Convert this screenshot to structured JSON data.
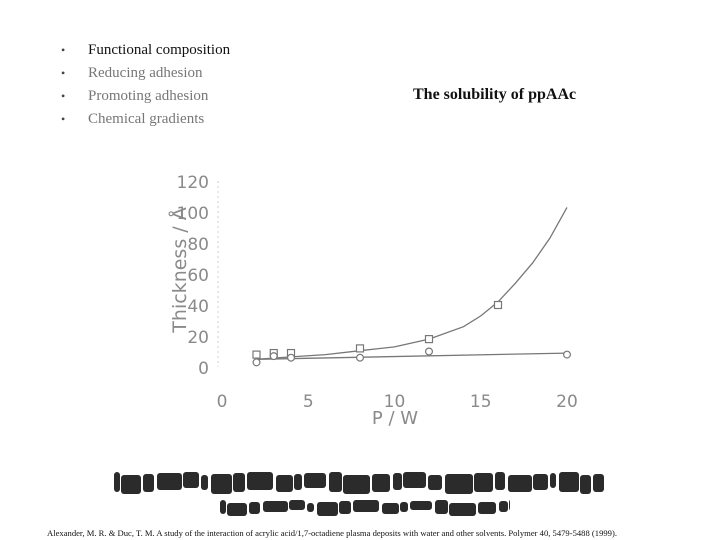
{
  "slide": {
    "bullets": [
      {
        "text": "Functional composition",
        "emphasis": "primary"
      },
      {
        "text": "Reducing adhesion",
        "emphasis": "secondary"
      },
      {
        "text": "Promoting adhesion",
        "emphasis": "secondary"
      },
      {
        "text": "Chemical gradients",
        "emphasis": "secondary"
      }
    ],
    "title": "The solubility of ppAAc",
    "citation": "Alexander, M. R. & Duc, T. M. A study of the interaction of acrylic acid/1,7-octadiene plasma deposits with water and other solvents. Polymer 40, 5479-5488 (1999).",
    "banner_color": "#2b2b2b"
  },
  "chart_data": {
    "type": "scatter",
    "xlabel": "P / W",
    "ylabel": "Thickness / Å",
    "xlim": [
      0,
      20
    ],
    "ylim": [
      0,
      120
    ],
    "x_ticks": [
      "0",
      "5",
      "10",
      "15",
      "20"
    ],
    "y_ticks": [
      "0",
      "20",
      "40",
      "60",
      "80",
      "100",
      "120"
    ],
    "grid": false,
    "series": [
      {
        "marker": "square",
        "color": "#777777",
        "points": [
          [
            2,
            8
          ],
          [
            3,
            9
          ],
          [
            4,
            9
          ],
          [
            8,
            12
          ],
          [
            12,
            18
          ],
          [
            16,
            40
          ]
        ],
        "fit": "exponential",
        "fit_points": [
          [
            2,
            5
          ],
          [
            4,
            6.5
          ],
          [
            6,
            8
          ],
          [
            8,
            10.5
          ],
          [
            10,
            13
          ],
          [
            12,
            18
          ],
          [
            14,
            26
          ],
          [
            15,
            33
          ],
          [
            16,
            42
          ],
          [
            17,
            54
          ],
          [
            18,
            67
          ],
          [
            19,
            83
          ],
          [
            20,
            103
          ]
        ]
      },
      {
        "marker": "circle",
        "color": "#777777",
        "points": [
          [
            2,
            3
          ],
          [
            3,
            7
          ],
          [
            4,
            6
          ],
          [
            8,
            6
          ],
          [
            12,
            10
          ],
          [
            20,
            8
          ]
        ],
        "fit": "linear",
        "fit_points": [
          [
            2,
            5
          ],
          [
            20,
            9
          ]
        ]
      }
    ]
  }
}
